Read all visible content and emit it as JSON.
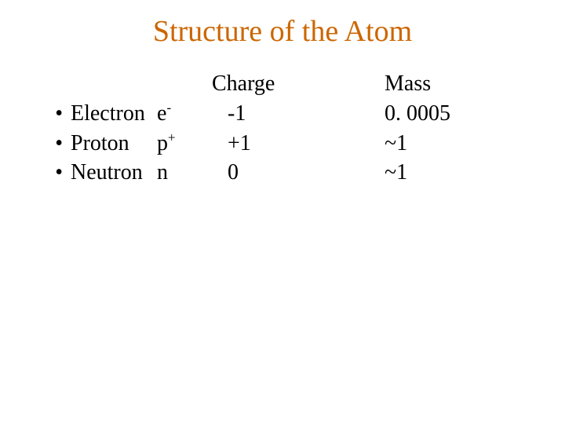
{
  "title": "Structure of the Atom",
  "headers": {
    "charge": "Charge",
    "mass": "Mass"
  },
  "bullet": "•",
  "rows": [
    {
      "name": "Electron",
      "symbol_base": "e",
      "symbol_sup": "-",
      "charge": "-1",
      "mass": "0. 0005"
    },
    {
      "name": "Proton",
      "symbol_base": "p",
      "symbol_sup": "+",
      "charge": "+1",
      "mass": "~1"
    },
    {
      "name": "Neutron",
      "symbol_base": "n",
      "symbol_sup": "",
      "charge": "0",
      "mass": "~1"
    }
  ],
  "colors": {
    "title": "#cc6600",
    "text": "#000000",
    "background": "#ffffff"
  },
  "fontsize": {
    "title": 38,
    "body": 28
  }
}
